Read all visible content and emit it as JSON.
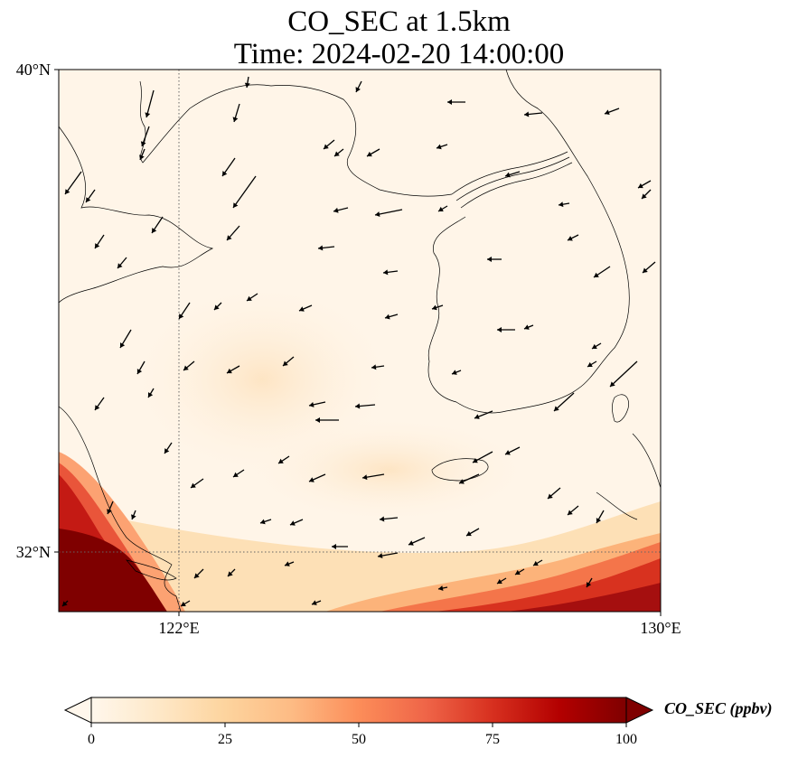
{
  "title_line1": "CO_SEC at 1.5km",
  "title_line2": "Time: 2024-02-20 14:00:00",
  "map": {
    "lon_range": [
      120,
      130
    ],
    "lat_range": [
      31,
      40
    ],
    "x_ticks": [
      {
        "value": 122,
        "label": "122°E"
      },
      {
        "value": 130,
        "label": "130°E"
      }
    ],
    "y_ticks": [
      {
        "value": 40,
        "label": "40°N"
      },
      {
        "value": 32,
        "label": "32°N"
      }
    ],
    "gridlines": {
      "lon": [
        122
      ],
      "lat": [
        32
      ],
      "style": "dotted"
    },
    "colormap": "OrRd",
    "coast_color": "#000000",
    "wind_arrow_color": "#000000"
  },
  "colorbar": {
    "label": "CO_SEC (ppbv)",
    "min": 0,
    "max": 100,
    "extend": "both",
    "ticks": [
      0,
      25,
      50,
      75,
      100
    ],
    "colors": [
      "#fff7ec",
      "#fee8c8",
      "#fdd49e",
      "#fdbb84",
      "#fc8d59",
      "#ef6548",
      "#d7301f",
      "#b30000",
      "#7f0000"
    ]
  }
}
